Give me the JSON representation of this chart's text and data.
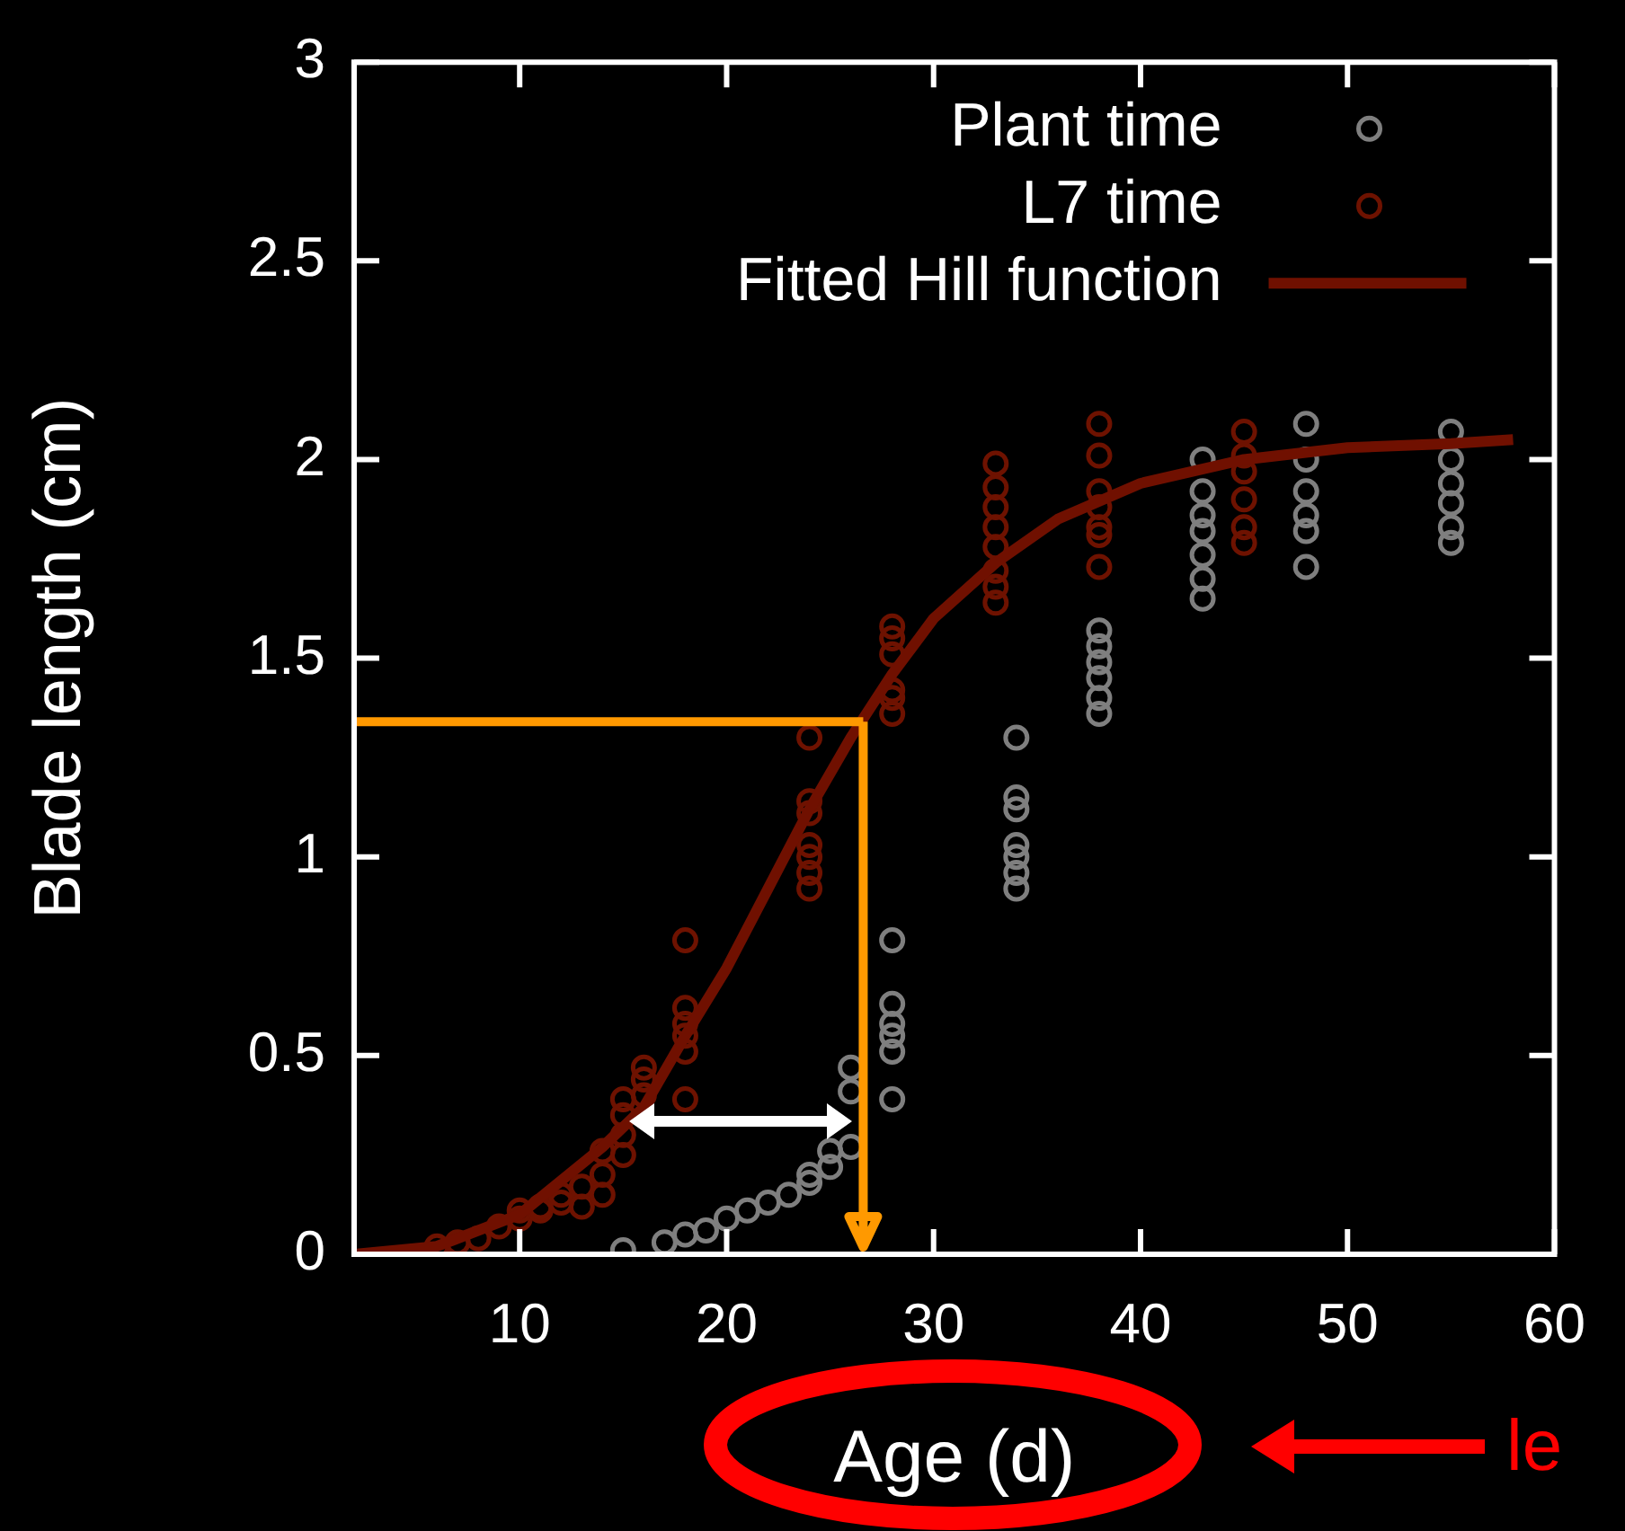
{
  "chart_data": {
    "type": "scatter",
    "xlabel": "Age (d)",
    "ylabel": "Blade length (cm)",
    "xlim": [
      2,
      60
    ],
    "xticks": [
      10,
      20,
      30,
      40,
      50,
      60
    ],
    "ylim": [
      0,
      3
    ],
    "yticks": [
      0,
      0.5,
      1,
      1.5,
      2,
      2.5,
      3
    ],
    "grid": false,
    "legend": "top right",
    "marker": "circle",
    "series": [
      {
        "name": "Plant time",
        "color": "#7f7f7f",
        "x": [
          15,
          17,
          18,
          19,
          20,
          21,
          22,
          23,
          24,
          24,
          25,
          25,
          26,
          26,
          26,
          28,
          28,
          28,
          28,
          28,
          28,
          34,
          34,
          34,
          34,
          34,
          34,
          34,
          38,
          38,
          38,
          38,
          38,
          38,
          43,
          43,
          43,
          43,
          43,
          43,
          43,
          48,
          48,
          48,
          48,
          48,
          48,
          55,
          55,
          55,
          55,
          55,
          55
        ],
        "values": [
          0.01,
          0.03,
          0.05,
          0.06,
          0.09,
          0.11,
          0.13,
          0.15,
          0.2,
          0.18,
          0.26,
          0.22,
          0.47,
          0.41,
          0.27,
          0.79,
          0.63,
          0.58,
          0.55,
          0.51,
          0.39,
          1.3,
          1.15,
          1.12,
          1.03,
          1.0,
          0.96,
          0.92,
          1.57,
          1.53,
          1.49,
          1.45,
          1.4,
          1.36,
          2.0,
          1.92,
          1.86,
          1.82,
          1.76,
          1.7,
          1.65,
          2.09,
          2.0,
          1.92,
          1.86,
          1.82,
          1.73,
          2.07,
          2.0,
          1.94,
          1.89,
          1.83,
          1.79
        ]
      },
      {
        "name": "L7 time",
        "color": "#6e1200",
        "x": [
          6,
          7,
          8,
          9,
          10,
          10,
          11,
          11,
          12,
          12,
          13,
          13,
          14,
          14,
          14,
          15,
          15,
          15,
          15,
          16,
          16,
          16,
          18,
          18,
          18,
          18,
          18,
          18,
          24,
          24,
          24,
          24,
          24,
          24,
          24,
          28,
          28,
          28,
          28,
          28,
          28,
          33,
          33,
          33,
          33,
          33,
          33,
          33,
          33,
          38,
          38,
          38,
          38,
          38,
          38,
          38,
          45,
          45,
          45,
          45,
          45,
          45
        ],
        "values": [
          0.02,
          0.03,
          0.04,
          0.07,
          0.09,
          0.11,
          0.11,
          0.12,
          0.13,
          0.15,
          0.17,
          0.12,
          0.26,
          0.2,
          0.15,
          0.39,
          0.35,
          0.3,
          0.25,
          0.47,
          0.44,
          0.4,
          0.79,
          0.62,
          0.58,
          0.55,
          0.51,
          0.39,
          1.3,
          1.14,
          1.11,
          1.03,
          1.0,
          0.96,
          0.92,
          1.58,
          1.55,
          1.51,
          1.42,
          1.4,
          1.36,
          1.99,
          1.93,
          1.88,
          1.83,
          1.78,
          1.72,
          1.68,
          1.64,
          2.09,
          2.01,
          1.92,
          1.88,
          1.83,
          1.81,
          1.73,
          2.07,
          2.01,
          1.97,
          1.9,
          1.83,
          1.79
        ]
      },
      {
        "name": "Fitted Hill function",
        "type": "line",
        "color": "#701000",
        "marker": "none",
        "x": [
          2,
          6,
          10,
          14,
          16,
          18,
          20,
          22,
          24,
          26,
          28,
          30,
          33,
          36,
          40,
          45,
          50,
          55,
          58
        ],
        "values": [
          0,
          0.02,
          0.1,
          0.27,
          0.37,
          0.55,
          0.72,
          0.92,
          1.12,
          1.3,
          1.46,
          1.6,
          1.74,
          1.85,
          1.94,
          2.0,
          2.03,
          2.04,
          2.05
        ]
      }
    ],
    "ref_lines": [
      {
        "axis": "y",
        "value": 1.34,
        "color": "#ff9900"
      },
      {
        "axis": "x",
        "value": 26.6,
        "color": "#ff9900"
      }
    ],
    "annotations": [
      "le"
    ]
  }
}
